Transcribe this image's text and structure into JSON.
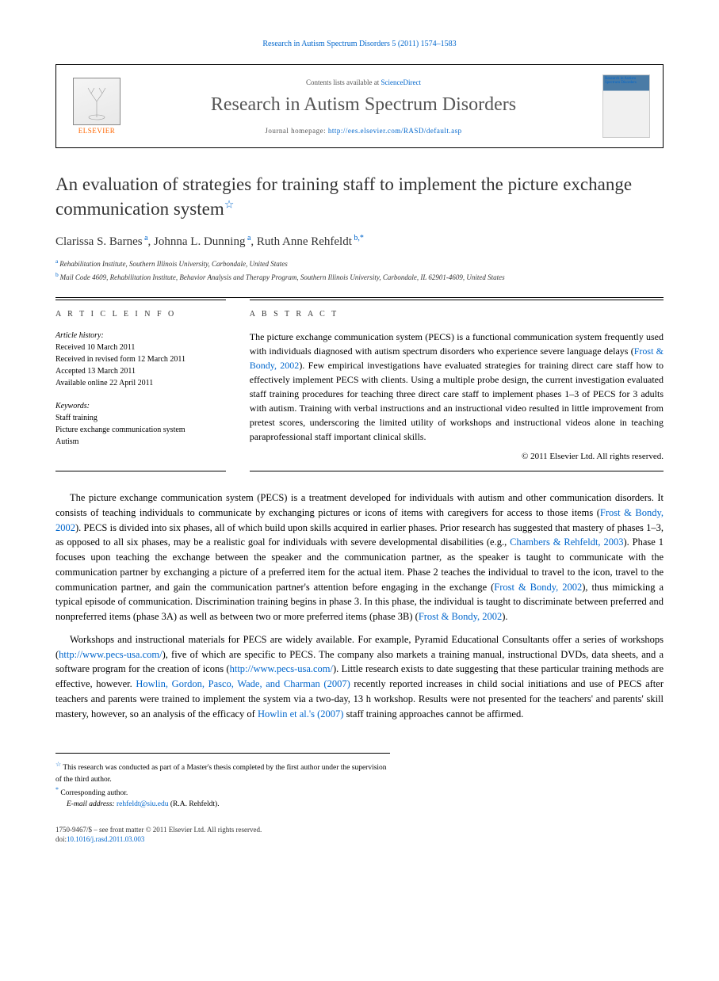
{
  "header": {
    "citation": "Research in Autism Spectrum Disorders 5 (2011) 1574–1583"
  },
  "masthead": {
    "publisher": "ELSEVIER",
    "contents_prefix": "Contents lists available at ",
    "contents_link": "ScienceDirect",
    "journal_title": "Research in Autism Spectrum Disorders",
    "homepage_prefix": "Journal homepage: ",
    "homepage_url": "http://ees.elsevier.com/RASD/default.asp",
    "cover_text": "Research in Autism Spectrum Disorders"
  },
  "article": {
    "title": "An evaluation of strategies for training staff to implement the picture exchange communication system",
    "title_note": "☆",
    "authors_html": "Clarissa S. Barnes|a|, Johnna L. Dunning|a|, Ruth Anne Rehfeldt|b,*",
    "authors": [
      {
        "name": "Clarissa S. Barnes",
        "sup": "a"
      },
      {
        "name": "Johnna L. Dunning",
        "sup": "a"
      },
      {
        "name": "Ruth Anne Rehfeldt",
        "sup": "b,*"
      }
    ],
    "affiliations": [
      {
        "sup": "a",
        "text": "Rehabilitation Institute, Southern Illinois University, Carbondale, United States"
      },
      {
        "sup": "b",
        "text": "Mail Code 4609, Rehabilitation Institute, Behavior Analysis and Therapy Program, Southern Illinois University, Carbondale, IL 62901-4609, United States"
      }
    ]
  },
  "info": {
    "label": "A R T I C L E   I N F O",
    "history_label": "Article history:",
    "history": [
      "Received 10 March 2011",
      "Received in revised form 12 March 2011",
      "Accepted 13 March 2011",
      "Available online 22 April 2011"
    ],
    "keywords_label": "Keywords:",
    "keywords": [
      "Staff training",
      "Picture exchange communication system",
      "Autism"
    ]
  },
  "abstract": {
    "label": "A B S T R A C T",
    "text_parts": [
      "The picture exchange communication system (PECS) is a functional communication system frequently used with individuals diagnosed with autism spectrum disorders who experience severe language delays (",
      "Frost & Bondy, 2002",
      "). Few empirical investigations have evaluated strategies for training direct care staff how to effectively implement PECS with clients. Using a multiple probe design, the current investigation evaluated staff training procedures for teaching three direct care staff to implement phases 1–3 of PECS for 3 adults with autism. Training with verbal instructions and an instructional video resulted in little improvement from pretest scores, underscoring the limited utility of workshops and instructional videos alone in teaching paraprofessional staff important clinical skills."
    ],
    "copyright": "© 2011 Elsevier Ltd. All rights reserved."
  },
  "body": {
    "p1_parts": [
      "The picture exchange communication system (PECS) is a treatment developed for individuals with autism and other communication disorders. It consists of teaching individuals to communicate by exchanging pictures or icons of items with caregivers for access to those items (",
      "Frost & Bondy, 2002",
      "). PECS is divided into six phases, all of which build upon skills acquired in earlier phases. Prior research has suggested that mastery of phases 1–3, as opposed to all six phases, may be a realistic goal for individuals with severe developmental disabilities (e.g., ",
      "Chambers & Rehfeldt, 2003",
      "). Phase 1 focuses upon teaching the exchange between the speaker and the communication partner, as the speaker is taught to communicate with the communication partner by exchanging a picture of a preferred item for the actual item. Phase 2 teaches the individual to travel to the icon, travel to the communication partner, and gain the communication partner's attention before engaging in the exchange (",
      "Frost & Bondy, 2002",
      "), thus mimicking a typical episode of communication. Discrimination training begins in phase 3. In this phase, the individual is taught to discriminate between preferred and nonpreferred items (phase 3A) as well as between two or more preferred items (phase 3B) (",
      "Frost & Bondy, 2002",
      ")."
    ],
    "p2_parts": [
      "Workshops and instructional materials for PECS are widely available. For example, Pyramid Educational Consultants offer a series of workshops (",
      "http://www.pecs-usa.com/",
      "), five of which are specific to PECS. The company also markets a training manual, instructional DVDs, data sheets, and a software program for the creation of icons (",
      "http://www.pecs-usa.com/",
      "). Little research exists to date suggesting that these particular training methods are effective, however. ",
      "Howlin, Gordon, Pasco, Wade, and Charman (2007)",
      " recently reported increases in child social initiations and use of PECS after teachers and parents were trained to implement the system via a two-day, 13 h workshop. Results were not presented for the teachers' and parents' skill mastery, however, so an analysis of the efficacy of ",
      "Howlin et al.'s (2007)",
      " staff training approaches cannot be affirmed."
    ]
  },
  "footnotes": {
    "note1_mark": "☆",
    "note1": "This research was conducted as part of a Master's thesis completed by the first author under the supervision of the third author.",
    "note2_mark": "*",
    "note2": "Corresponding author.",
    "email_label": "E-mail address:",
    "email": "rehfeldt@siu.edu",
    "email_who": "(R.A. Rehfeldt)."
  },
  "footer": {
    "line1": "1750-9467/$ – see front matter © 2011 Elsevier Ltd. All rights reserved.",
    "doi_label": "doi:",
    "doi": "10.1016/j.rasd.2011.03.003"
  },
  "colors": {
    "link": "#0066cc",
    "publisher": "#ff6600",
    "text": "#000000",
    "muted": "#555555"
  }
}
